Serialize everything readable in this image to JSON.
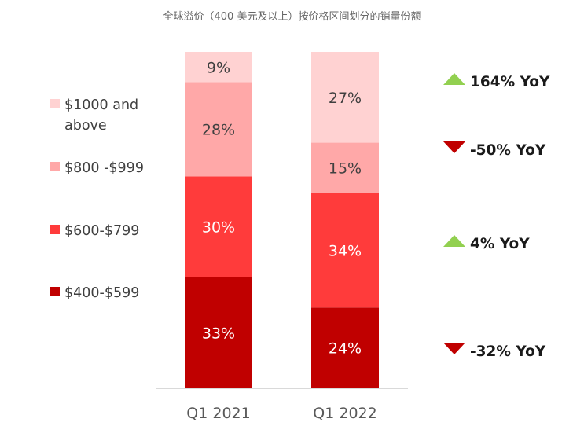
{
  "chart_data": {
    "type": "bar",
    "stacked": true,
    "title": "全球溢价（400 美元及以上）按价格区间划分的销量份额",
    "categories": [
      "Q1 2021",
      "Q1 2022"
    ],
    "series": [
      {
        "name": "$400-$599",
        "color": "#c00000",
        "values": [
          33,
          24
        ],
        "labels": [
          "33%",
          "24%"
        ]
      },
      {
        "name": "$600-$799",
        "color": "#ff3b3b",
        "values": [
          30,
          34
        ],
        "labels": [
          "30%",
          "34%"
        ]
      },
      {
        "name": "$800 -$999",
        "color": "#ffa8a8",
        "values": [
          28,
          15
        ],
        "labels": [
          "28%",
          "15%"
        ]
      },
      {
        "name": "$1000 and above",
        "color": "#ffd2d2",
        "values": [
          9,
          27
        ],
        "labels": [
          "9%",
          "27%"
        ]
      }
    ],
    "legend": [
      {
        "line1": "$1000 and",
        "line2": "above",
        "color": "#ffd2d2"
      },
      {
        "line1": "$800 -$999",
        "line2": "",
        "color": "#ffa8a8"
      },
      {
        "line1": "$600-$799",
        "line2": "",
        "color": "#ff3b3b"
      },
      {
        "line1": "$400-$599",
        "line2": "",
        "color": "#c00000"
      }
    ],
    "yoy": [
      {
        "segment": "$1000 and above",
        "label": "164% YoY",
        "direction": "up",
        "color": "#92d050"
      },
      {
        "segment": "$800 -$999",
        "label": "-50% YoY",
        "direction": "down",
        "color": "#c00000"
      },
      {
        "segment": "$600-$799",
        "label": "4% YoY",
        "direction": "up",
        "color": "#92d050"
      },
      {
        "segment": "$400-$599",
        "label": "-32% YoY",
        "direction": "down",
        "color": "#c00000"
      }
    ],
    "ylim": [
      0,
      100
    ],
    "xlabel": "",
    "ylabel": ""
  }
}
